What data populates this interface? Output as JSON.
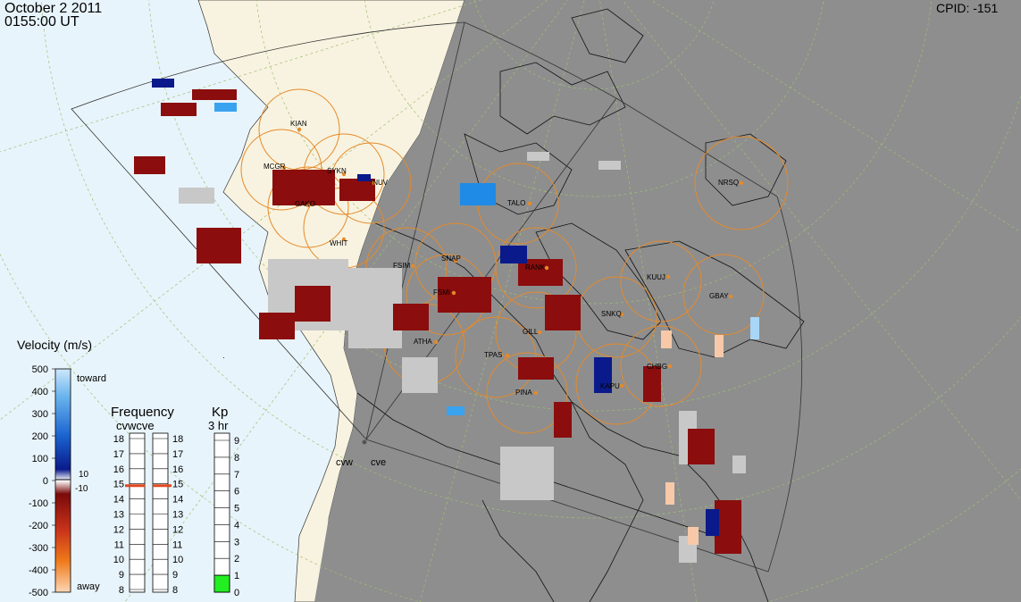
{
  "header": {
    "date": "October 2 2011",
    "time": "0155:00 UT",
    "cpid": "CPID:  -151"
  },
  "colors": {
    "sunlit": "#e8f4fb",
    "land_sunlit": "#f8f3e0",
    "night": "#8e8e8e",
    "grid": "#9fbf75",
    "fov_circle": "#e58a2a",
    "ground_scatter": "#c8c8c8",
    "away_dark": "#8b0d0d",
    "toward_dark": "#0a1a8a",
    "kp_fill": "#22ee22"
  },
  "stations": [
    {
      "name": "KIAN"
    },
    {
      "name": "MCGR"
    },
    {
      "name": "SYKN"
    },
    {
      "name": "INUV"
    },
    {
      "name": "GAKO"
    },
    {
      "name": "WHIT"
    },
    {
      "name": "FSIM"
    },
    {
      "name": "SNAP"
    },
    {
      "name": "FSMI"
    },
    {
      "name": "RANK"
    },
    {
      "name": "TALO"
    },
    {
      "name": "NRSQ"
    },
    {
      "name": "KUUJ"
    },
    {
      "name": "GBAY"
    },
    {
      "name": "SNKQ"
    },
    {
      "name": "GILL"
    },
    {
      "name": "ATHA"
    },
    {
      "name": "TPAS"
    },
    {
      "name": "PINA"
    },
    {
      "name": "KAPU"
    },
    {
      "name": "CHBG"
    }
  ],
  "radars": {
    "west": "cvw",
    "east": "cve"
  },
  "velocity_legend": {
    "title": "Velocity (m/s)",
    "toward": "toward",
    "away": "away",
    "ticks": [
      "500",
      "400",
      "300",
      "200",
      "100",
      "0",
      "-100",
      "-200",
      "-300",
      "-400",
      "-500"
    ],
    "inner_pos": "10",
    "inner_neg": "-10"
  },
  "frequency_legend": {
    "title": "Frequency",
    "subtitle": "cvwcve",
    "ticks": [
      "18",
      "17",
      "16",
      "15",
      "14",
      "13",
      "12",
      "11",
      "10",
      "9",
      "8"
    ],
    "cvw_level": 15,
    "cve_level": 15
  },
  "kp_legend": {
    "title": "Kp",
    "subtitle": "3 hr",
    "ticks": [
      "9",
      "8",
      "7",
      "6",
      "5",
      "4",
      "3",
      "2",
      "1",
      "0"
    ],
    "value": 1
  }
}
